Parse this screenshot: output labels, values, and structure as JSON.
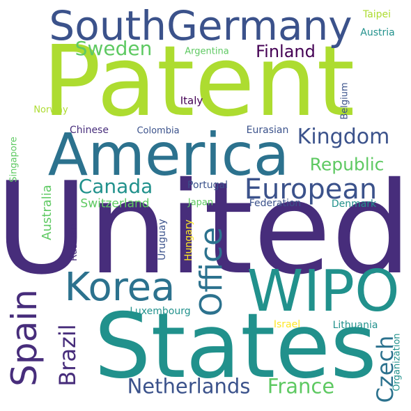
{
  "palette": {
    "dark_purple": "#472d7b",
    "indigo": "#3b528b",
    "blue": "#2c728e",
    "teal": "#21918c",
    "green_teal": "#28ae80",
    "green": "#5ec962",
    "lime": "#addc30",
    "yellow": "#fde725",
    "near_black_purple": "#440154"
  },
  "words": {
    "united": "United",
    "patent": "Patent",
    "states": "States",
    "america": "America",
    "wipo": "WIPO",
    "southgermany": "SouthGermany",
    "korea": "Korea",
    "european": "European",
    "office": "Office",
    "spain": "Spain",
    "kingdom": "Kingdom",
    "netherlands": "Netherlands",
    "canada": "Canada",
    "republic": "Republic",
    "sweden": "Sweden",
    "finland": "Finland",
    "france": "France",
    "czech": "Czech",
    "brazil": "Brazil",
    "switzerland": "Switzerland",
    "australia": "Australia",
    "taipei": "Taipei",
    "austria": "Austria",
    "argentina": "Argentina",
    "italy": "Italy",
    "norway": "Norway",
    "belgium": "Belgium",
    "chinese": "Chinese",
    "colombia": "Colombia",
    "eurasian": "Eurasian",
    "singapore": "Singapore",
    "portugal": "Portugal",
    "japan": "Japan",
    "federation": "Federation",
    "denmark": "Denmark",
    "russian": "Russian",
    "uruguay": "Uruguay",
    "hungary": "Hungary",
    "luxembourg": "Luxembourg",
    "israel": "Israel",
    "lithuania": "Lithuania",
    "organization": "Organization"
  }
}
